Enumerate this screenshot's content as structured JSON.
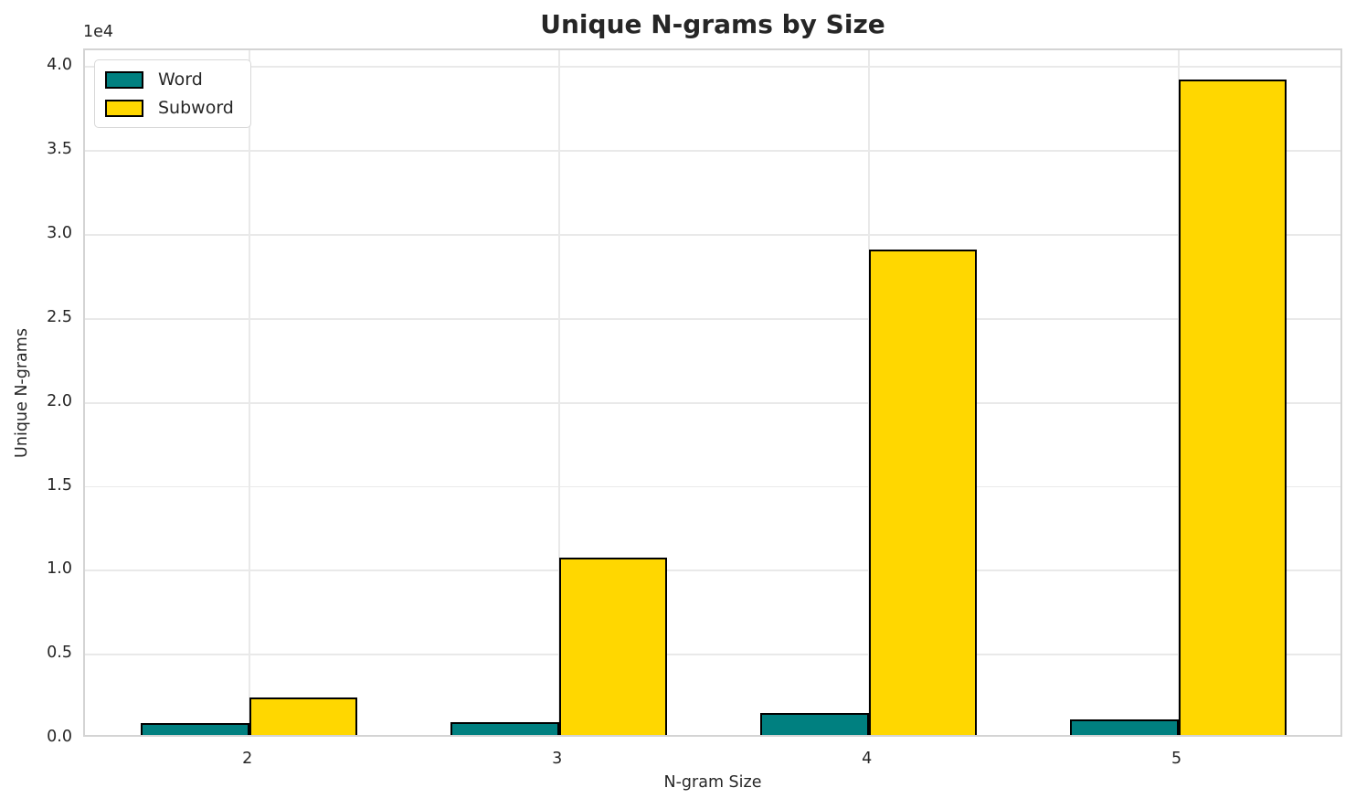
{
  "chart_data": {
    "type": "bar",
    "title": "Unique N-grams by Size",
    "xlabel": "N-gram Size",
    "ylabel": "Unique N-grams",
    "categories": [
      "2",
      "3",
      "4",
      "5"
    ],
    "series": [
      {
        "name": "Word",
        "color": "#008080",
        "values": [
          700,
          750,
          1300,
          900
        ]
      },
      {
        "name": "Subword",
        "color": "#FFD700",
        "values": [
          2250,
          10550,
          28900,
          39050
        ]
      }
    ],
    "bar_width_units": 0.35,
    "bar_edge_color": "#000000",
    "ylim": [
      0,
      41000
    ],
    "xlim": [
      -0.53,
      3.535
    ],
    "y_ticks": [
      0,
      5000,
      10000,
      15000,
      20000,
      25000,
      30000,
      35000,
      40000
    ],
    "y_tick_labels": [
      "0.0",
      "0.5",
      "1.0",
      "1.5",
      "2.0",
      "2.5",
      "3.0",
      "3.5",
      "4.0"
    ],
    "y_offset_label": "1e4",
    "grid": true,
    "legend_position": "upper left",
    "colors": {
      "text": "#262626",
      "grid": "#e9e9e9",
      "spine": "#d4d4d4",
      "background": "#ffffff"
    }
  }
}
